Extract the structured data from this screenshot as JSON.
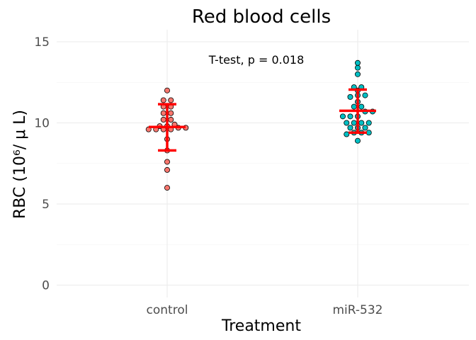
{
  "chart_data": {
    "type": "scatter",
    "title": "Red blood cells",
    "xlabel": "Treatment",
    "ylabel": "RBC (10⁶/ μ L)",
    "categories": [
      "control",
      "miR-532"
    ],
    "ylim": [
      -0.7,
      15.6
    ],
    "yticks": [
      0,
      5,
      10,
      15
    ],
    "grid": true,
    "legend": "none",
    "annotation": "T-test, p = 0.018",
    "series": [
      {
        "category": "control",
        "color": "#F8766D",
        "values": [
          6.0,
          7.1,
          7.6,
          8.3,
          9.0,
          9.6,
          9.6,
          9.6,
          9.6,
          9.7,
          9.7,
          9.8,
          9.8,
          9.9,
          10.2,
          10.2,
          10.6,
          10.6,
          11.0,
          11.0,
          11.4,
          11.4,
          12.0
        ],
        "mean": 9.75,
        "sd_low": 8.3,
        "sd_high": 11.15
      },
      {
        "category": "miR-532",
        "color": "#00BFC4",
        "values": [
          8.9,
          9.3,
          9.4,
          9.4,
          9.4,
          9.7,
          9.7,
          9.7,
          10.0,
          10.0,
          10.0,
          10.0,
          10.4,
          10.4,
          10.4,
          10.7,
          10.7,
          11.0,
          11.0,
          11.3,
          11.6,
          11.7,
          11.7,
          12.0,
          12.2,
          12.2,
          13.0,
          13.4,
          13.7
        ],
        "mean": 10.75,
        "sd_low": 9.4,
        "sd_high": 12.05
      }
    ],
    "summary_color": "#FF0000"
  }
}
